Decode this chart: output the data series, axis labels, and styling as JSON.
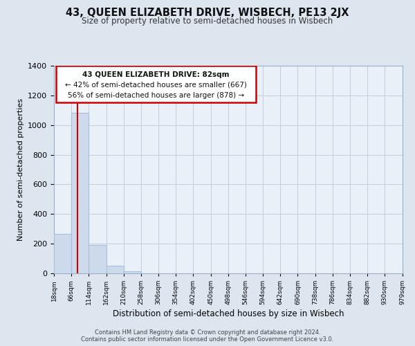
{
  "title": "43, QUEEN ELIZABETH DRIVE, WISBECH, PE13 2JX",
  "subtitle": "Size of property relative to semi-detached houses in Wisbech",
  "xlabel": "Distribution of semi-detached houses by size in Wisbech",
  "ylabel": "Number of semi-detached properties",
  "bin_edges": [
    18,
    66,
    114,
    162,
    210,
    258,
    306,
    354,
    402,
    450,
    498,
    546,
    594,
    642,
    690,
    738,
    786,
    834,
    882,
    930,
    979
  ],
  "bin_labels": [
    "18sqm",
    "66sqm",
    "114sqm",
    "162sqm",
    "210sqm",
    "258sqm",
    "306sqm",
    "354sqm",
    "402sqm",
    "450sqm",
    "498sqm",
    "546sqm",
    "594sqm",
    "642sqm",
    "690sqm",
    "738sqm",
    "786sqm",
    "834sqm",
    "882sqm",
    "930sqm",
    "979sqm"
  ],
  "counts": [
    265,
    1085,
    193,
    50,
    15,
    0,
    0,
    0,
    0,
    0,
    0,
    0,
    0,
    0,
    0,
    0,
    0,
    0,
    0,
    0
  ],
  "bar_color": "#ccdaeb",
  "bar_edgecolor": "#a8bedc",
  "property_size": 82,
  "property_line_color": "#cc0000",
  "annotation_text_line1": "43 QUEEN ELIZABETH DRIVE: 82sqm",
  "annotation_text_line2": "← 42% of semi-detached houses are smaller (667)",
  "annotation_text_line3": "56% of semi-detached houses are larger (878) →",
  "annotation_box_edgecolor": "#cc0000",
  "annotation_box_facecolor": "#ffffff",
  "ylim": [
    0,
    1400
  ],
  "yticks": [
    0,
    200,
    400,
    600,
    800,
    1000,
    1200,
    1400
  ],
  "footer_line1": "Contains HM Land Registry data © Crown copyright and database right 2024.",
  "footer_line2": "Contains public sector information licensed under the Open Government Licence v3.0.",
  "background_color": "#dde5ef",
  "plot_background_color": "#eaf0f7"
}
